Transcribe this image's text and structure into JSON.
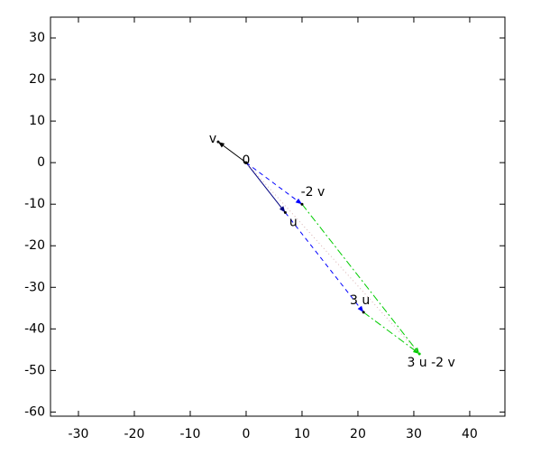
{
  "chart_data": {
    "type": "vector",
    "xlim": [
      -35,
      46.3
    ],
    "ylim": [
      -61,
      35
    ],
    "xticks": [
      -30,
      -20,
      -10,
      0,
      10,
      20,
      30,
      40
    ],
    "yticks": [
      -60,
      -50,
      -40,
      -30,
      -20,
      -10,
      0,
      10,
      20,
      30
    ],
    "points": [
      {
        "name": "0",
        "x": 0,
        "y": 0
      },
      {
        "name": "v",
        "x": -5,
        "y": 5
      },
      {
        "name": "u",
        "x": 7,
        "y": -12
      },
      {
        "name": "-2 v",
        "x": 10,
        "y": -10
      },
      {
        "name": "3 u",
        "x": 21,
        "y": -36
      },
      {
        "name": "3 u -2 v",
        "x": 31,
        "y": -46
      }
    ],
    "label_color": "#000000",
    "sum_color": "#00cc00",
    "series": [
      {
        "color": "#000000",
        "dash": "solid",
        "arrow": true,
        "x": [
          0,
          -5
        ],
        "y": [
          0,
          5
        ]
      },
      {
        "color": "#000080",
        "dash": "solid",
        "arrow": true,
        "x": [
          0,
          7
        ],
        "y": [
          0,
          -12
        ]
      },
      {
        "color": "#0000ff",
        "dash": "dashed",
        "arrow": true,
        "x": [
          0,
          10
        ],
        "y": [
          0,
          -10
        ]
      },
      {
        "color": "#0000ff",
        "dash": "dashed",
        "arrow": true,
        "x": [
          7,
          21
        ],
        "y": [
          -12,
          -36
        ]
      },
      {
        "color": "#00cc00",
        "dash": "dashdot",
        "arrow": true,
        "x": [
          10,
          31
        ],
        "y": [
          -10,
          -46
        ]
      },
      {
        "color": "#00cc00",
        "dash": "dashdot",
        "arrow": true,
        "x": [
          21,
          31
        ],
        "y": [
          -36,
          -46
        ]
      },
      {
        "color": "#d8b0b0",
        "dash": "dotted",
        "arrow": false,
        "x": [
          0,
          31
        ],
        "y": [
          0,
          -46
        ]
      }
    ]
  }
}
